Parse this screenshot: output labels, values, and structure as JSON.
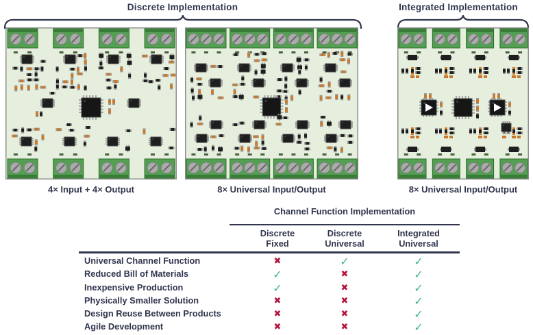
{
  "headers": {
    "discrete": "Discrete Implementation",
    "integrated": "Integrated Implementation"
  },
  "boards": [
    {
      "name": "discrete-fixed",
      "caption": "4× Input + 4× Output"
    },
    {
      "name": "discrete-universal",
      "caption": "8× Universal Input/Output"
    },
    {
      "name": "integrated-universal",
      "caption": "8× Universal Input/Output"
    }
  ],
  "table": {
    "title": "Channel Function Implementation",
    "columns": [
      [
        "Discrete",
        "Fixed"
      ],
      [
        "Discrete",
        "Universal"
      ],
      [
        "Integrated",
        "Universal"
      ]
    ],
    "rows": [
      {
        "label": "Universal Channel Function",
        "values": [
          "cross",
          "check",
          "check"
        ]
      },
      {
        "label": "Reduced Bill of Materials",
        "values": [
          "check",
          "cross",
          "check"
        ]
      },
      {
        "label": "Inexpensive Production",
        "values": [
          "check",
          "cross",
          "check"
        ]
      },
      {
        "label": "Physically Smaller Solution",
        "values": [
          "cross",
          "cross",
          "check"
        ]
      },
      {
        "label": "Design Reuse Between Products",
        "values": [
          "cross",
          "cross",
          "check"
        ]
      },
      {
        "label": "Agile Development",
        "values": [
          "cross",
          "cross",
          "check"
        ]
      }
    ]
  },
  "marks": {
    "check_glyph": "✓",
    "cross_glyph": "✖",
    "check_color": "#3eb489",
    "cross_color": "#b51740"
  },
  "colors": {
    "text": "#32364e",
    "board_fill": "#e6efdd",
    "board_border": "#8b908a",
    "terminal_green": "#53a053",
    "terminal_dark": "#377d37",
    "terminal_edge": "#2d6b2d",
    "screw_gray": "#ababab",
    "screw_edge": "#7d7d7d",
    "pad_green": "#46603d",
    "component_dark": "#1e1e1e",
    "component_orange": "#c8792b",
    "pad_gray": "#9c9c9c",
    "pin_gray": "#a8a8a8"
  }
}
